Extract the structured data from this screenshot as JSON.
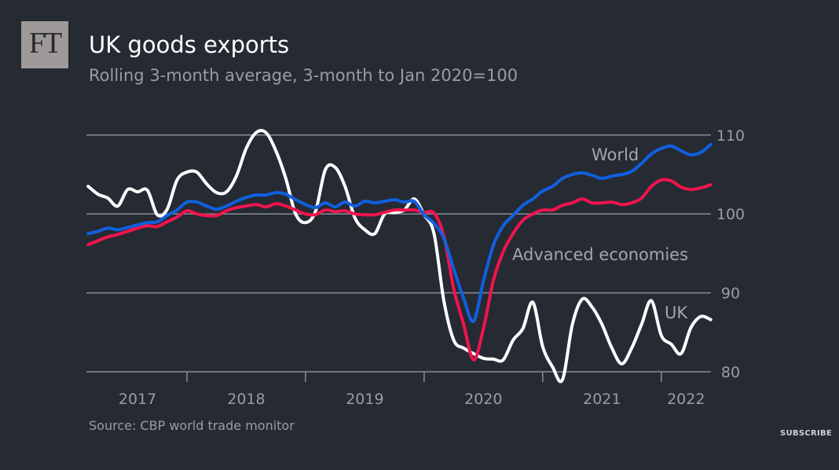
{
  "header": {
    "logo_text": "FT",
    "title": "UK goods exports",
    "subtitle": "Rolling 3-month average, 3-month to Jan 2020=100"
  },
  "footer": {
    "source": "Source: CBP world trade monitor",
    "subscribe_label": "SUBSCRIBE"
  },
  "chart_data": {
    "type": "line",
    "title": "UK goods exports",
    "subtitle": "Rolling 3-month average, 3-month to Jan 2020=100",
    "xlabel": "",
    "ylabel": "",
    "ylim": [
      80,
      110
    ],
    "yticks": [
      80,
      90,
      100,
      110
    ],
    "ytick_labels": [
      "80",
      "90",
      "100",
      "110"
    ],
    "xtick_labels": [
      "2017",
      "2018",
      "2019",
      "2020",
      "2021",
      "2022"
    ],
    "grid": "horizontal",
    "y_axis_side": "right",
    "legend": "inline labels",
    "x": [
      "2017-03",
      "2017-04",
      "2017-05",
      "2017-06",
      "2017-07",
      "2017-08",
      "2017-09",
      "2017-10",
      "2017-11",
      "2017-12",
      "2018-01",
      "2018-02",
      "2018-03",
      "2018-04",
      "2018-05",
      "2018-06",
      "2018-07",
      "2018-08",
      "2018-09",
      "2018-10",
      "2018-11",
      "2018-12",
      "2019-01",
      "2019-02",
      "2019-03",
      "2019-04",
      "2019-05",
      "2019-06",
      "2019-07",
      "2019-08",
      "2019-09",
      "2019-10",
      "2019-11",
      "2019-12",
      "2020-01",
      "2020-02",
      "2020-03",
      "2020-04",
      "2020-05",
      "2020-06",
      "2020-07",
      "2020-08",
      "2020-09",
      "2020-10",
      "2020-11",
      "2020-12",
      "2021-01",
      "2021-02",
      "2021-03",
      "2021-04",
      "2021-05",
      "2021-06",
      "2021-07",
      "2021-08",
      "2021-09",
      "2021-10",
      "2021-11",
      "2021-12",
      "2022-01",
      "2022-02",
      "2022-03",
      "2022-04",
      "2022-05",
      "2022-06"
    ],
    "series": [
      {
        "name": "World",
        "color": "#1060e0",
        "values": [
          97.5,
          97.8,
          98.2,
          98.0,
          98.3,
          98.6,
          98.9,
          99.0,
          99.8,
          100.5,
          101.5,
          101.5,
          101.0,
          100.6,
          101.0,
          101.6,
          102.1,
          102.4,
          102.4,
          102.7,
          102.5,
          101.8,
          101.2,
          100.8,
          101.4,
          100.9,
          101.5,
          101.0,
          101.6,
          101.4,
          101.6,
          101.8,
          101.5,
          101.6,
          99.9,
          98.8,
          96.9,
          93.0,
          89.3,
          86.4,
          91.5,
          96.0,
          98.5,
          99.8,
          101.1,
          101.9,
          102.9,
          103.5,
          104.5,
          105.0,
          105.2,
          104.9,
          104.5,
          104.8,
          105.0,
          105.4,
          106.4,
          107.6,
          108.3,
          108.6,
          108.0,
          107.5,
          107.8,
          108.8
        ]
      },
      {
        "name": "Advanced economies",
        "color": "#f0144e",
        "values": [
          96.1,
          96.6,
          97.1,
          97.4,
          97.8,
          98.2,
          98.5,
          98.4,
          99.0,
          99.6,
          100.4,
          100.0,
          99.8,
          99.8,
          100.4,
          100.8,
          101.0,
          101.2,
          100.9,
          101.3,
          101.0,
          100.5,
          100.0,
          99.9,
          100.5,
          100.3,
          100.4,
          100.0,
          99.9,
          99.9,
          100.2,
          100.5,
          100.5,
          100.5,
          100.2,
          100.1,
          97.2,
          90.5,
          86.0,
          81.5,
          85.5,
          91.5,
          95.2,
          97.5,
          99.2,
          100.0,
          100.5,
          100.5,
          101.1,
          101.4,
          101.9,
          101.4,
          101.4,
          101.5,
          101.2,
          101.4,
          102.0,
          103.5,
          104.3,
          104.2,
          103.4,
          103.1,
          103.3,
          103.7
        ]
      },
      {
        "name": "UK",
        "color": "#ffffff",
        "values": [
          103.5,
          102.5,
          102.0,
          101.0,
          103.1,
          102.8,
          103.0,
          99.9,
          100.6,
          104.3,
          105.3,
          105.3,
          103.8,
          102.7,
          102.8,
          104.8,
          108.3,
          110.3,
          110.3,
          108.0,
          104.5,
          100.0,
          98.9,
          100.3,
          105.6,
          105.9,
          103.5,
          99.5,
          98.0,
          97.5,
          100.0,
          100.2,
          100.5,
          101.9,
          99.9,
          97.5,
          89.0,
          84.0,
          83.0,
          82.3,
          81.7,
          81.6,
          81.5,
          84.0,
          85.5,
          88.8,
          83.2,
          80.6,
          79.0,
          86.0,
          89.2,
          88.2,
          86.0,
          83.0,
          81.0,
          83.0,
          86.0,
          89.0,
          84.6,
          83.5,
          82.3,
          85.6,
          87.0,
          86.6
        ]
      }
    ]
  }
}
